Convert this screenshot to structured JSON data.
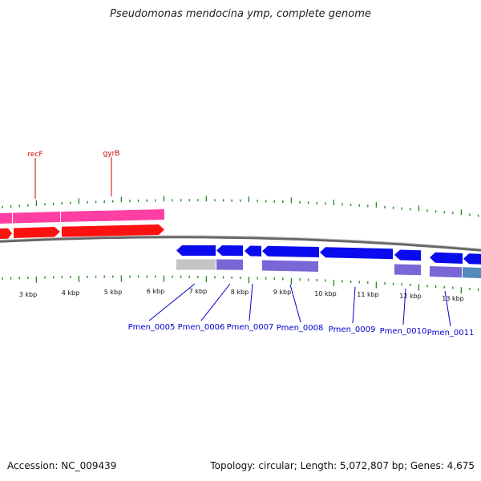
{
  "title": "Pseudomonas mendocina ymp, complete genome",
  "colors": {
    "backbone": "#888888",
    "tick": "#2a8a2a",
    "pink": "#ff3fa3",
    "red": "#ff1111",
    "blue": "#0a0aee",
    "purple": "#7a66d6",
    "gray": "#c4c4c4",
    "steel": "#5588bb",
    "red_label": "#cc0000",
    "blue_label": "#0000cc"
  },
  "kbp_labels": [
    "3 kbp",
    "4 kbp",
    "5 kbp",
    "6 kbp",
    "7 kbp",
    "8 kbp",
    "9 kbp",
    "10 kbp",
    "11 kbp",
    "12 kbp",
    "13 kbp"
  ],
  "top_gene_labels": [
    "recF",
    "gyrB"
  ],
  "bottom_gene_labels": [
    "Pmen_0005",
    "Pmen_0006",
    "Pmen_0007",
    "Pmen_0008",
    "Pmen_0009",
    "Pmen_0010",
    "Pmen_0011"
  ],
  "footer": {
    "accession": "Accession: NC_009439",
    "summary": "Topology: circular; Length: 5,072,807 bp; Genes: 4,675"
  }
}
